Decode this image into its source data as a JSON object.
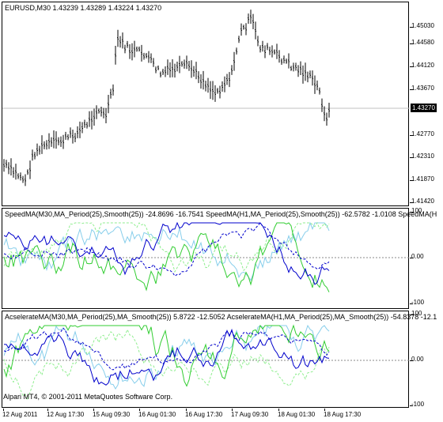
{
  "price_pane": {
    "title": "EURUSD,M30  1.43239 1.43289 1.43224 1.43270",
    "current_price": "1.43270",
    "ticks": [
      "1.45030",
      "1.44580",
      "1.44120",
      "1.43670",
      "1.42770",
      "1.42310",
      "1.41870",
      "1.41420"
    ]
  },
  "speed_pane": {
    "title": "SpeedMA(M30,MA_Period(25),Smooth(25)) -24.8696 -16.7541  SpeedMA(H1,MA_Period(25),Smooth(25)) -62.5782 -1.0108  SpeedMA(H",
    "ticks": [
      "100",
      "0.00",
      "-100"
    ]
  },
  "accel_pane": {
    "title": "AcselerateMA(M30,MA_Period(25),MA_Smooth(25)) 5.8722 -12.5052  AcselerateMA(H1,MA_Period(25),MA_Smooth(25)) -54.8378 -12.1",
    "ticks": [
      "100",
      "0.00",
      "-100"
    ]
  },
  "footer": "Alpari MT4, © 2001-2011 MetaQuotes Software Corp.",
  "time_axis": [
    "12 Aug 2011",
    "12 Aug 17:30",
    "15 Aug 09:30",
    "16 Aug 01:30",
    "16 Aug 17:30",
    "17 Aug 09:30",
    "18 Aug 01:30",
    "18 Aug 17:30"
  ],
  "colors": {
    "candles": "#000000",
    "grid_line": "#c0c0c0",
    "line_dark_blue": "#0000cc",
    "line_light_blue": "#87ceeb",
    "line_green": "#32cd32",
    "line_light_green": "#90ee90"
  }
}
